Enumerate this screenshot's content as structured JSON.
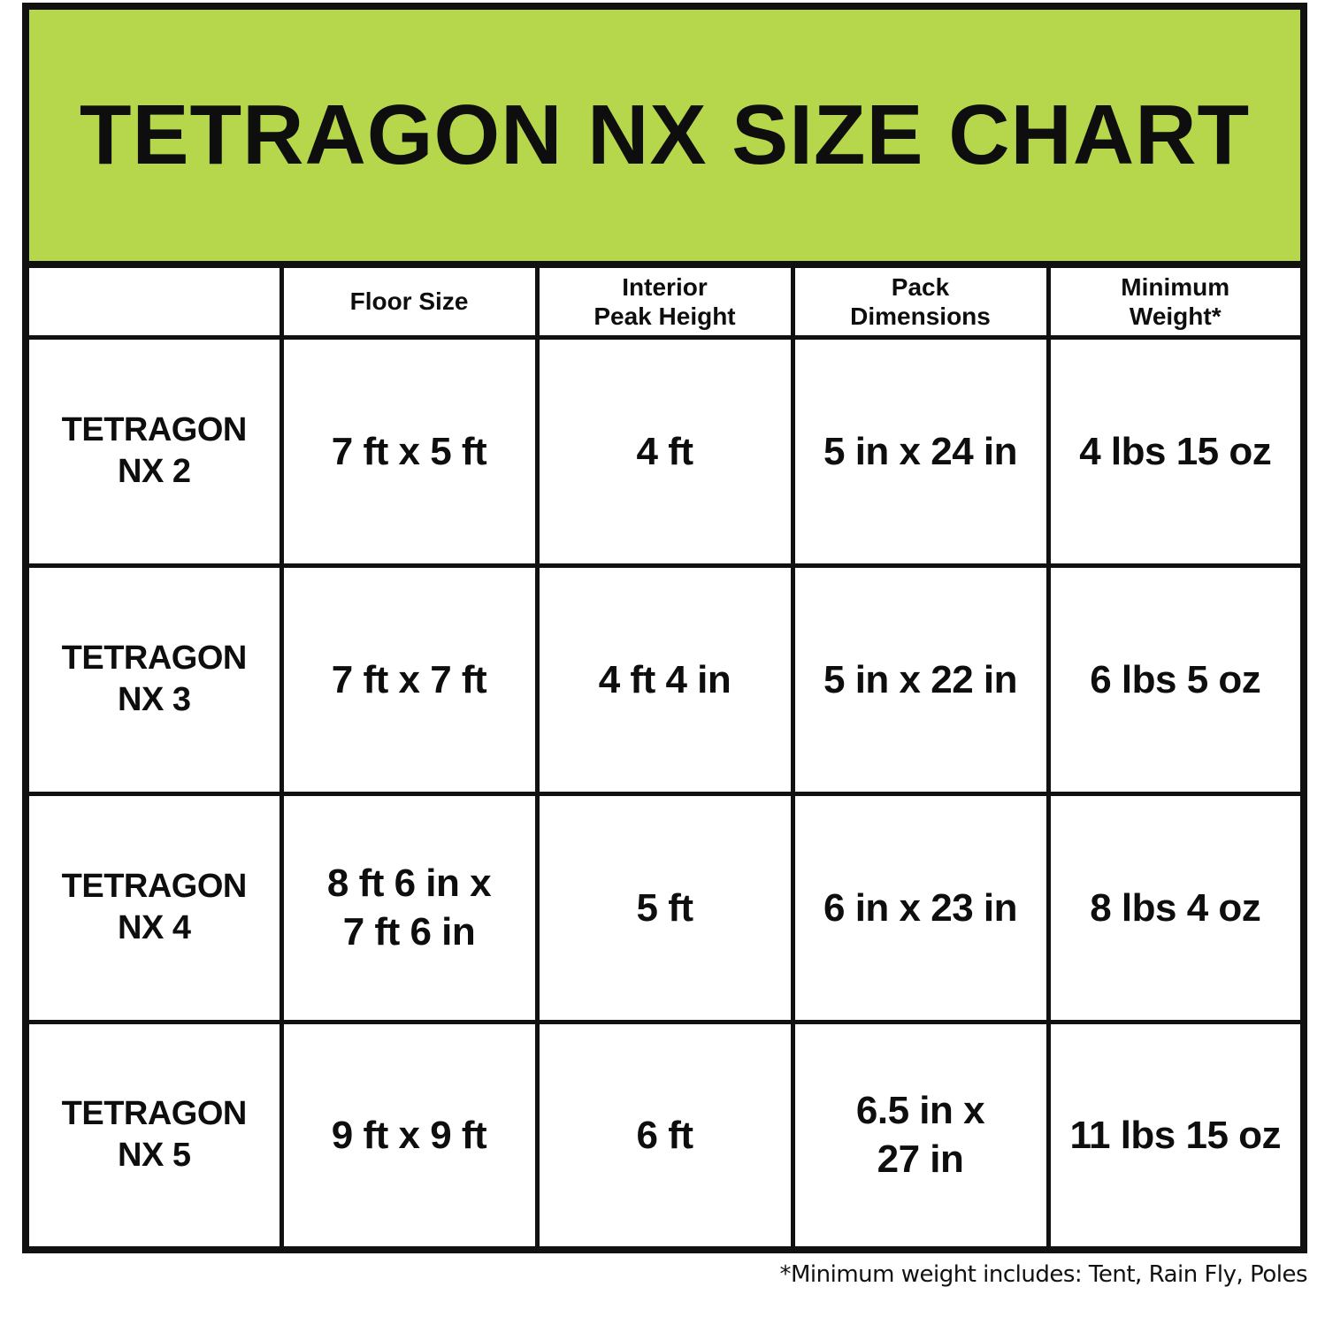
{
  "title": "TETRAGON NX SIZE CHART",
  "colors": {
    "banner_green": "#b6d74b",
    "border_black": "#111111",
    "text_black": "#0e0e0e"
  },
  "table": {
    "columns": [
      "",
      "Floor Size",
      "Interior\nPeak Height",
      "Pack\nDimensions",
      "Minimum\nWeight*"
    ],
    "rows": [
      {
        "name": "TETRAGON\nNX 2",
        "floor_size": "7 ft x 5 ft",
        "interior_peak_height": "4 ft",
        "pack_dimensions": "5 in x 24 in",
        "minimum_weight": "4 lbs 15 oz"
      },
      {
        "name": "TETRAGON\nNX 3",
        "floor_size": "7 ft x 7 ft",
        "interior_peak_height": "4 ft 4 in",
        "pack_dimensions": "5 in x 22 in",
        "minimum_weight": "6 lbs 5 oz"
      },
      {
        "name": "TETRAGON\nNX 4",
        "floor_size": "8 ft 6 in x\n7 ft 6 in",
        "interior_peak_height": "5 ft",
        "pack_dimensions": "6 in x 23 in",
        "minimum_weight": "8 lbs 4 oz"
      },
      {
        "name": "TETRAGON\nNX 5",
        "floor_size": "9 ft x 9 ft",
        "interior_peak_height": "6 ft",
        "pack_dimensions": "6.5 in x\n27 in",
        "minimum_weight": "11 lbs 15 oz"
      }
    ]
  },
  "footnote": "*Minimum weight includes: Tent, Rain Fly, Poles"
}
